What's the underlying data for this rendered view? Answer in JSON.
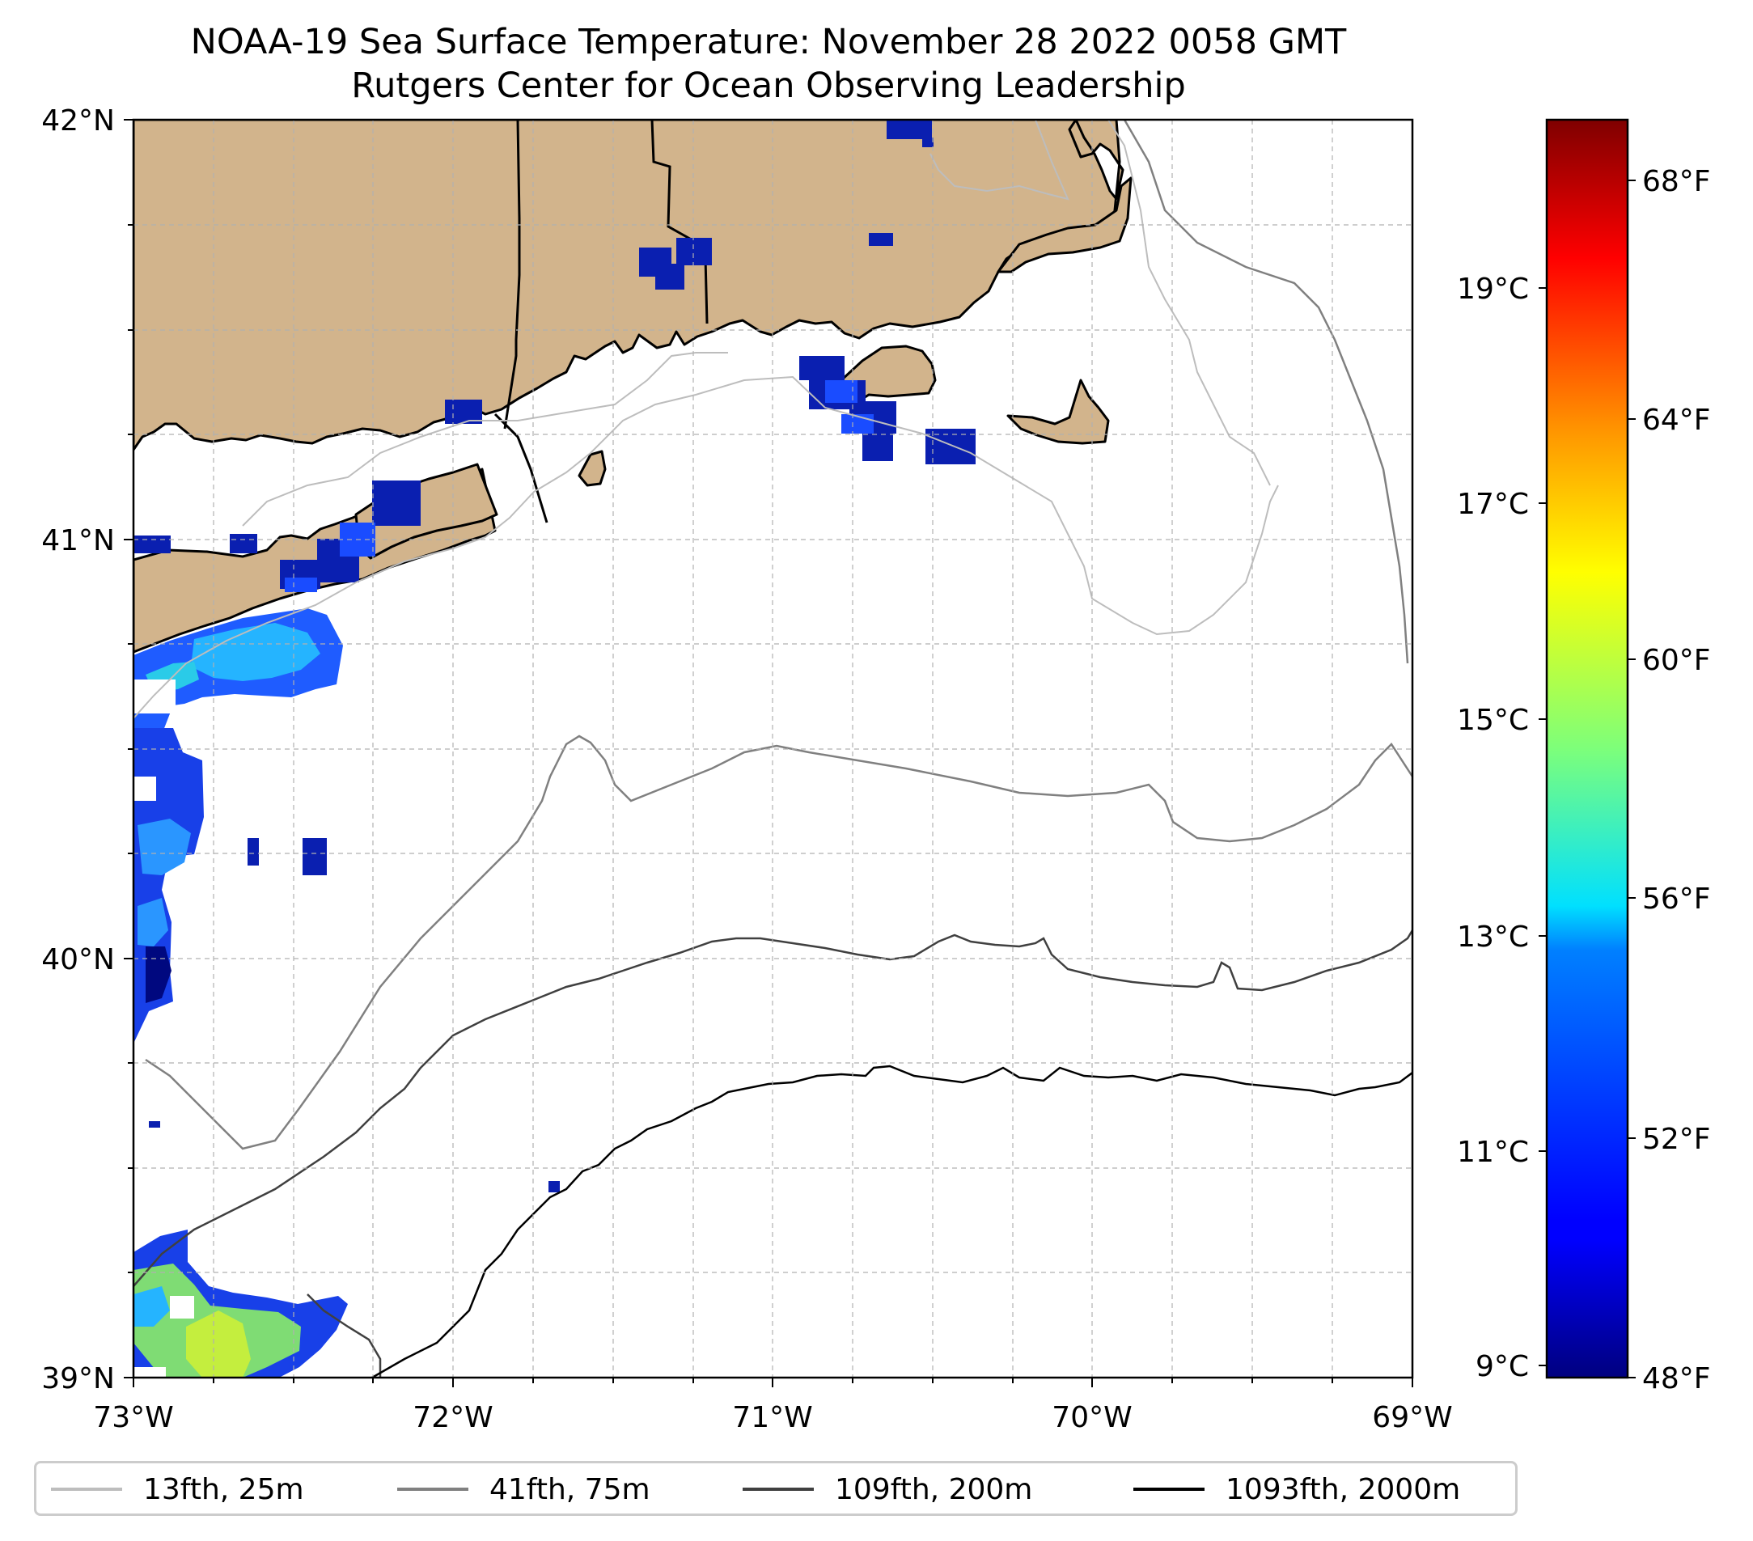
{
  "title": {
    "line1": "NOAA-19 Sea Surface Temperature: November 28 2022 0058 GMT",
    "line2": "Rutgers Center for Ocean Observing Leadership"
  },
  "map": {
    "lon_range": [
      -73,
      -69
    ],
    "lat_range": [
      39,
      42
    ],
    "x_tick_labels": [
      "73°W",
      "72°W",
      "71°W",
      "70°W",
      "69°W"
    ],
    "y_tick_labels": [
      "39°N",
      "40°N",
      "41°N",
      "42°N"
    ],
    "gridlines": true,
    "land_color": "#d2b48c",
    "colormap": "jet"
  },
  "colorbar": {
    "celsius_labels": [
      "9°C",
      "11°C",
      "13°C",
      "15°C",
      "17°C",
      "19°C"
    ],
    "fahrenheit_labels": [
      "48°F",
      "52°F",
      "56°F",
      "60°F",
      "64°F",
      "68°F"
    ],
    "range_f": [
      48,
      70
    ]
  },
  "legend": {
    "items": [
      {
        "label": "13fth, 25m",
        "color": "#bdbdbd"
      },
      {
        "label": "41fth, 75m",
        "color": "#808080"
      },
      {
        "label": "109fth, 200m",
        "color": "#404040"
      },
      {
        "label": "1093fth, 2000m",
        "color": "#000000"
      }
    ]
  }
}
